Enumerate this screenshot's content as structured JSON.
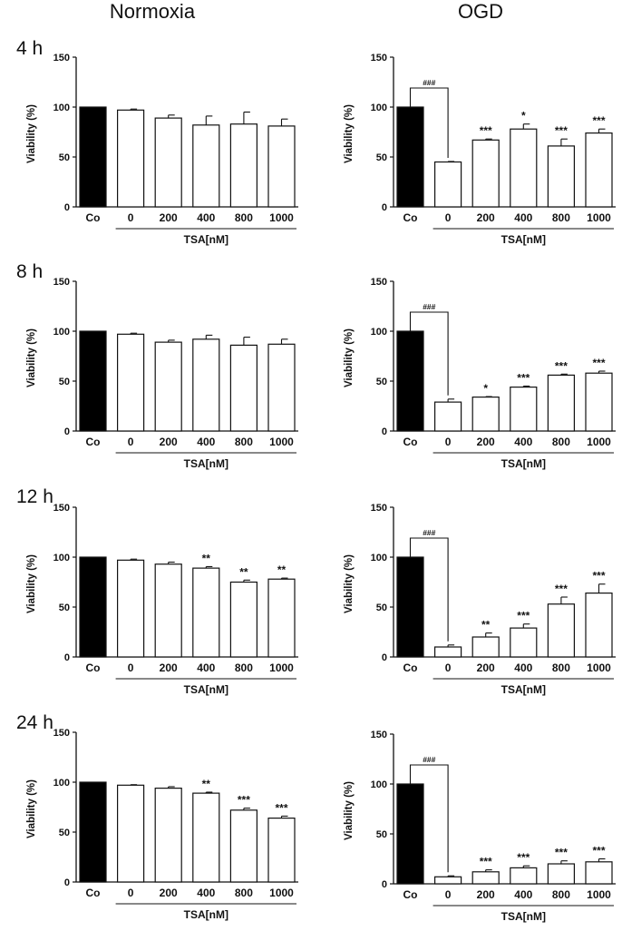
{
  "figure": {
    "column_titles": [
      "Normoxia",
      "OGD"
    ]
  },
  "chart_data": [
    {
      "type": "bar",
      "condition": "Normoxia",
      "time": "4 h",
      "categories": [
        "Co",
        "0",
        "200",
        "400",
        "800",
        "1000"
      ],
      "values": [
        100,
        97,
        89,
        82,
        83,
        81
      ],
      "errors": [
        0,
        1,
        3,
        9,
        12,
        7
      ],
      "significance": [
        "",
        "",
        "",
        "",
        "",
        ""
      ],
      "ylabel": "Viability (%)",
      "xlabel": "TSA[nM]",
      "ylim": [
        0,
        150
      ],
      "yticks": [
        "0",
        "50",
        "100",
        "150"
      ]
    },
    {
      "type": "bar",
      "condition": "OGD",
      "time": "4 h",
      "categories": [
        "Co",
        "0",
        "200",
        "400",
        "800",
        "1000"
      ],
      "values": [
        100,
        45,
        67,
        78,
        61,
        74
      ],
      "errors": [
        0,
        0.5,
        1,
        5,
        7,
        4
      ],
      "significance": [
        "",
        "",
        "***",
        "*",
        "***",
        "***"
      ],
      "comparison": "###",
      "ylabel": "Viability (%)",
      "xlabel": "TSA[nM]",
      "ylim": [
        0,
        150
      ],
      "yticks": [
        "0",
        "50",
        "100",
        "150"
      ]
    },
    {
      "type": "bar",
      "condition": "Normoxia",
      "time": "8 h",
      "categories": [
        "Co",
        "0",
        "200",
        "400",
        "800",
        "1000"
      ],
      "values": [
        100,
        97,
        89,
        92,
        86,
        87
      ],
      "errors": [
        0,
        1,
        2,
        4,
        8,
        5
      ],
      "significance": [
        "",
        "",
        "",
        "",
        "",
        ""
      ],
      "ylabel": "Viability (%)",
      "xlabel": "TSA[nM]",
      "ylim": [
        0,
        150
      ],
      "yticks": [
        "0",
        "50",
        "100",
        "150"
      ]
    },
    {
      "type": "bar",
      "condition": "OGD",
      "time": "8 h",
      "categories": [
        "Co",
        "0",
        "200",
        "400",
        "800",
        "1000"
      ],
      "values": [
        100,
        29,
        34,
        44,
        56,
        58
      ],
      "errors": [
        0,
        3,
        0.5,
        1,
        1,
        2
      ],
      "significance": [
        "",
        "",
        "*",
        "***",
        "***",
        "***"
      ],
      "comparison": "###",
      "ylabel": "Viability (%)",
      "xlabel": "TSA[nM]",
      "ylim": [
        0,
        150
      ],
      "yticks": [
        "0",
        "50",
        "100",
        "150"
      ]
    },
    {
      "type": "bar",
      "condition": "Normoxia",
      "time": "12 h",
      "categories": [
        "Co",
        "0",
        "200",
        "400",
        "800",
        "1000"
      ],
      "values": [
        100,
        97,
        93,
        89,
        75,
        78
      ],
      "errors": [
        0,
        1,
        2,
        1.5,
        2,
        1
      ],
      "significance": [
        "",
        "",
        "",
        "**",
        "**",
        "**"
      ],
      "ylabel": "Viability (%)",
      "xlabel": "TSA[nM]",
      "ylim": [
        0,
        150
      ],
      "yticks": [
        "0",
        "50",
        "100",
        "150"
      ]
    },
    {
      "type": "bar",
      "condition": "OGD",
      "time": "12 h",
      "categories": [
        "Co",
        "0",
        "200",
        "400",
        "800",
        "1000"
      ],
      "values": [
        100,
        10,
        20,
        29,
        53,
        64
      ],
      "errors": [
        0,
        2,
        4,
        4,
        7,
        9
      ],
      "significance": [
        "",
        "",
        "**",
        "***",
        "***",
        "***"
      ],
      "comparison": "###",
      "ylabel": "Viability (%)",
      "xlabel": "TSA[nM]",
      "ylim": [
        0,
        150
      ],
      "yticks": [
        "0",
        "50",
        "100",
        "150"
      ]
    },
    {
      "type": "bar",
      "condition": "Normoxia",
      "time": "24 h",
      "categories": [
        "Co",
        "0",
        "200",
        "400",
        "800",
        "1000"
      ],
      "values": [
        100,
        97,
        94,
        89,
        72,
        64
      ],
      "errors": [
        0,
        0.5,
        1.5,
        1,
        2,
        2
      ],
      "significance": [
        "",
        "",
        "",
        "**",
        "***",
        "***"
      ],
      "ylabel": "Viability (%)",
      "xlabel": "TSA[nM]",
      "ylim": [
        0,
        150
      ],
      "yticks": [
        "0",
        "50",
        "100",
        "150"
      ]
    },
    {
      "type": "bar",
      "condition": "OGD",
      "time": "24 h",
      "categories": [
        "Co",
        "0",
        "200",
        "400",
        "800",
        "1000"
      ],
      "values": [
        100,
        7,
        12,
        16,
        20,
        22
      ],
      "errors": [
        0,
        1,
        2,
        2,
        3,
        3
      ],
      "significance": [
        "",
        "",
        "***",
        "***",
        "***",
        "***"
      ],
      "comparison": "###",
      "ylabel": "Viability (%)",
      "xlabel": "TSA[nM]",
      "ylim": [
        0,
        150
      ],
      "yticks": [
        "0",
        "50",
        "100",
        "150"
      ]
    }
  ]
}
